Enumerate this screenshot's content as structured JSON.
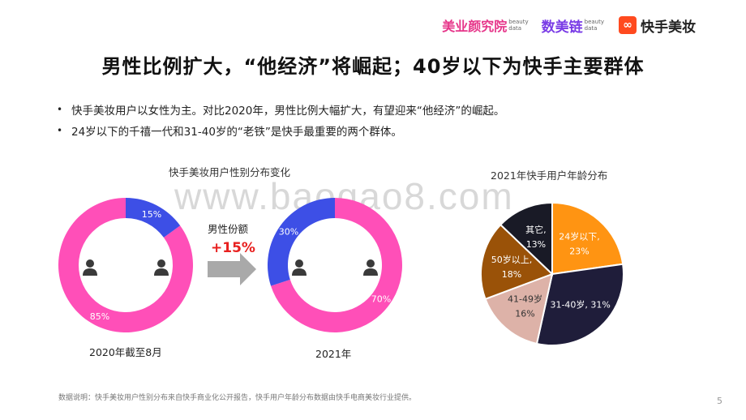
{
  "header": {
    "logo1_text": "美业颜究院",
    "logo1_sub1": "beauty",
    "logo1_sub2": "data",
    "logo2_text": "数美链",
    "logo2_sub1": "beauty",
    "logo2_sub2": "data",
    "logo3_text": "快手美妆"
  },
  "title": "男性比例扩大，“他经济”将崛起；40岁以下为快手主要群体",
  "bullets": [
    "快手美妆用户以女性为主。对比2020年，男性比例大幅扩大，有望迎来“他经济”的崛起。",
    "24岁以下的千禧一代和31-40岁的“老铁”是快手最重要的两个群体。"
  ],
  "watermark": "www.baogao8.com",
  "gender_chart_title": "快手美妆用户性别分布变化",
  "age_chart_title": "2021年快手用户年龄分布",
  "arrow": {
    "label": "男性份额",
    "value": "+15%"
  },
  "note": "数据说明：快手美妆用户性别分布来自快手商业化公开报告，快手用户年龄分布数据由快手电商美妆行业提供。",
  "page_number": "5",
  "colors": {
    "female": "#ff4fb8",
    "male": "#3d4fe6",
    "arrow": "#a9a9a9"
  },
  "chart_data": [
    {
      "type": "pie",
      "variant": "donut",
      "caption": "2020年截至8月",
      "slices": [
        {
          "label": "85%",
          "value": 85,
          "icon": "female-user-icon"
        },
        {
          "label": "15%",
          "value": 15,
          "icon": "male-user-icon"
        }
      ]
    },
    {
      "type": "pie",
      "variant": "donut",
      "caption": "2021年",
      "slices": [
        {
          "label": "70%",
          "value": 70,
          "icon": "female-user-icon"
        },
        {
          "label": "30%",
          "value": 30,
          "icon": "male-user-icon"
        }
      ]
    },
    {
      "type": "pie",
      "title": "2021年快手用户年龄分布",
      "slices": [
        {
          "name": "24岁以下",
          "value": 23,
          "line1": "24岁以下,",
          "line2": "23%",
          "color": "#ff9412",
          "textColor": "#ffffff"
        },
        {
          "name": "31-40岁",
          "value": 31,
          "line1": "31-40岁, 31%",
          "line2": "",
          "color": "#1f1d3a",
          "textColor": "#ffffff"
        },
        {
          "name": "41-49岁",
          "value": 16,
          "line1": "41-49岁",
          "line2": "16%",
          "color": "#ddb2a8",
          "textColor": "#333333"
        },
        {
          "name": "50岁以上",
          "value": 18,
          "line1": "50岁以上,",
          "line2": "18%",
          "color": "#9a5208",
          "textColor": "#ffffff"
        },
        {
          "name": "其它",
          "value": 13,
          "line1": "其它,",
          "line2": "13%",
          "color": "#191a26",
          "textColor": "#ffffff"
        }
      ]
    }
  ]
}
